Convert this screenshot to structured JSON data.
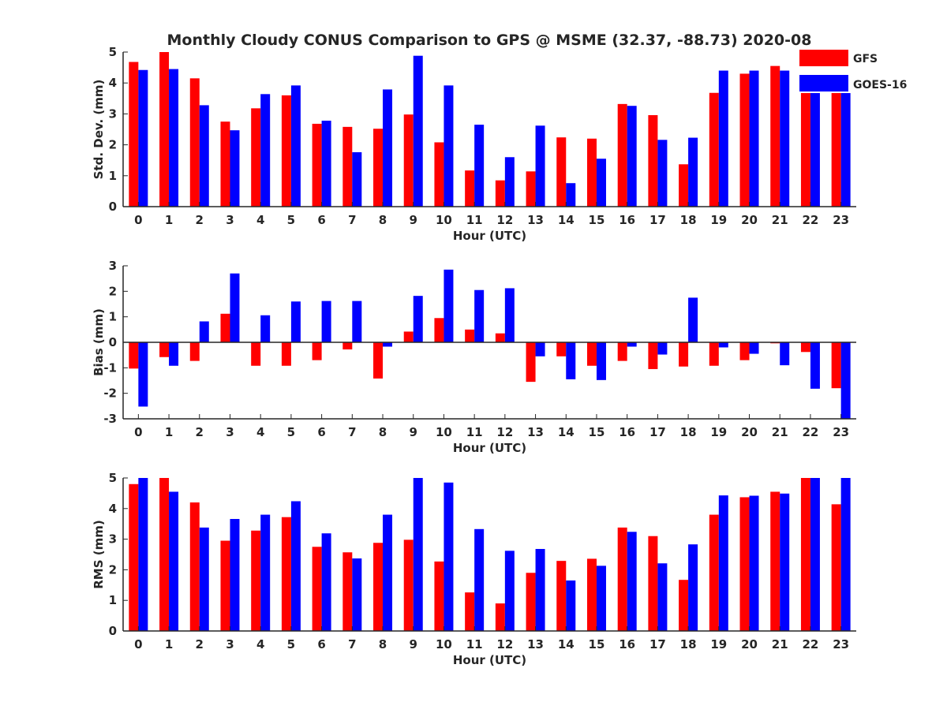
{
  "title": "Monthly Cloudy CONUS Comparison to GPS @ MSME (32.37, -88.73) 2020-08",
  "legend": [
    {
      "label": "GFS",
      "color": "#ff0000"
    },
    {
      "label": "GOES-16",
      "color": "#0000ff"
    }
  ],
  "chart_data": [
    {
      "type": "bar",
      "xlabel": "Hour (UTC)",
      "ylabel": "Std. Dev. (mm)",
      "ylim": [
        0,
        5
      ],
      "yticks": [
        0,
        1,
        2,
        3,
        4,
        5
      ],
      "categories": [
        "0",
        "1",
        "2",
        "3",
        "4",
        "5",
        "6",
        "7",
        "8",
        "9",
        "10",
        "11",
        "12",
        "13",
        "14",
        "15",
        "16",
        "17",
        "18",
        "19",
        "20",
        "21",
        "22",
        "23"
      ],
      "legend_position": "top-right",
      "series": [
        {
          "name": "GFS",
          "color": "#ff0000",
          "values": [
            4.68,
            5.0,
            4.15,
            2.75,
            3.18,
            3.6,
            2.68,
            2.58,
            2.52,
            2.98,
            2.08,
            1.17,
            0.85,
            1.14,
            2.24,
            2.2,
            3.32,
            2.96,
            1.37,
            3.68,
            4.3,
            4.55,
            5.0,
            3.72
          ]
        },
        {
          "name": "GOES-16",
          "color": "#0000ff",
          "values": [
            4.42,
            4.45,
            3.28,
            2.47,
            3.64,
            3.92,
            2.78,
            1.76,
            3.79,
            4.88,
            3.92,
            2.65,
            1.6,
            2.62,
            0.76,
            1.55,
            3.26,
            2.16,
            2.23,
            4.4,
            4.4,
            4.4,
            5.0,
            3.85
          ]
        }
      ]
    },
    {
      "type": "bar",
      "xlabel": "Hour (UTC)",
      "ylabel": "Bias (mm)",
      "ylim": [
        -3,
        3
      ],
      "yticks": [
        -3,
        -2,
        -1,
        0,
        1,
        2,
        3
      ],
      "categories": [
        "0",
        "1",
        "2",
        "3",
        "4",
        "5",
        "6",
        "7",
        "8",
        "9",
        "10",
        "11",
        "12",
        "13",
        "14",
        "15",
        "16",
        "17",
        "18",
        "19",
        "20",
        "21",
        "22",
        "23"
      ],
      "series": [
        {
          "name": "GFS",
          "color": "#ff0000",
          "values": [
            -1.03,
            -0.58,
            -0.73,
            1.12,
            -0.92,
            -0.92,
            -0.7,
            -0.28,
            -1.42,
            0.42,
            0.95,
            0.5,
            0.35,
            -1.55,
            -0.55,
            -0.92,
            -0.73,
            -1.05,
            -0.95,
            -0.92,
            -0.7,
            -0.04,
            -0.38,
            -1.8
          ]
        },
        {
          "name": "GOES-16",
          "color": "#0000ff",
          "values": [
            -2.52,
            -0.92,
            0.82,
            2.7,
            1.06,
            1.6,
            1.62,
            1.62,
            -0.17,
            1.82,
            2.85,
            2.05,
            2.12,
            -0.55,
            -1.45,
            -1.48,
            -0.17,
            -0.48,
            1.75,
            -0.2,
            -0.45,
            -0.9,
            -1.82,
            -3.0
          ]
        }
      ]
    },
    {
      "type": "bar",
      "xlabel": "Hour (UTC)",
      "ylabel": "RMS (mm)",
      "ylim": [
        0,
        5
      ],
      "yticks": [
        0,
        1,
        2,
        3,
        4,
        5
      ],
      "categories": [
        "0",
        "1",
        "2",
        "3",
        "4",
        "5",
        "6",
        "7",
        "8",
        "9",
        "10",
        "11",
        "12",
        "13",
        "14",
        "15",
        "16",
        "17",
        "18",
        "19",
        "20",
        "21",
        "22",
        "23"
      ],
      "series": [
        {
          "name": "GFS",
          "color": "#ff0000",
          "values": [
            4.8,
            5.0,
            4.2,
            2.95,
            3.28,
            3.72,
            2.75,
            2.57,
            2.88,
            2.98,
            2.27,
            1.26,
            0.9,
            1.9,
            2.29,
            2.36,
            3.38,
            3.1,
            1.67,
            3.8,
            4.37,
            4.55,
            5.0,
            4.14
          ]
        },
        {
          "name": "GOES-16",
          "color": "#0000ff",
          "values": [
            5.0,
            4.55,
            3.38,
            3.66,
            3.8,
            4.24,
            3.19,
            2.37,
            3.8,
            5.0,
            4.85,
            3.33,
            2.62,
            2.68,
            1.65,
            2.13,
            3.24,
            2.21,
            2.83,
            4.43,
            4.42,
            4.49,
            5.0,
            5.0
          ]
        }
      ]
    }
  ]
}
